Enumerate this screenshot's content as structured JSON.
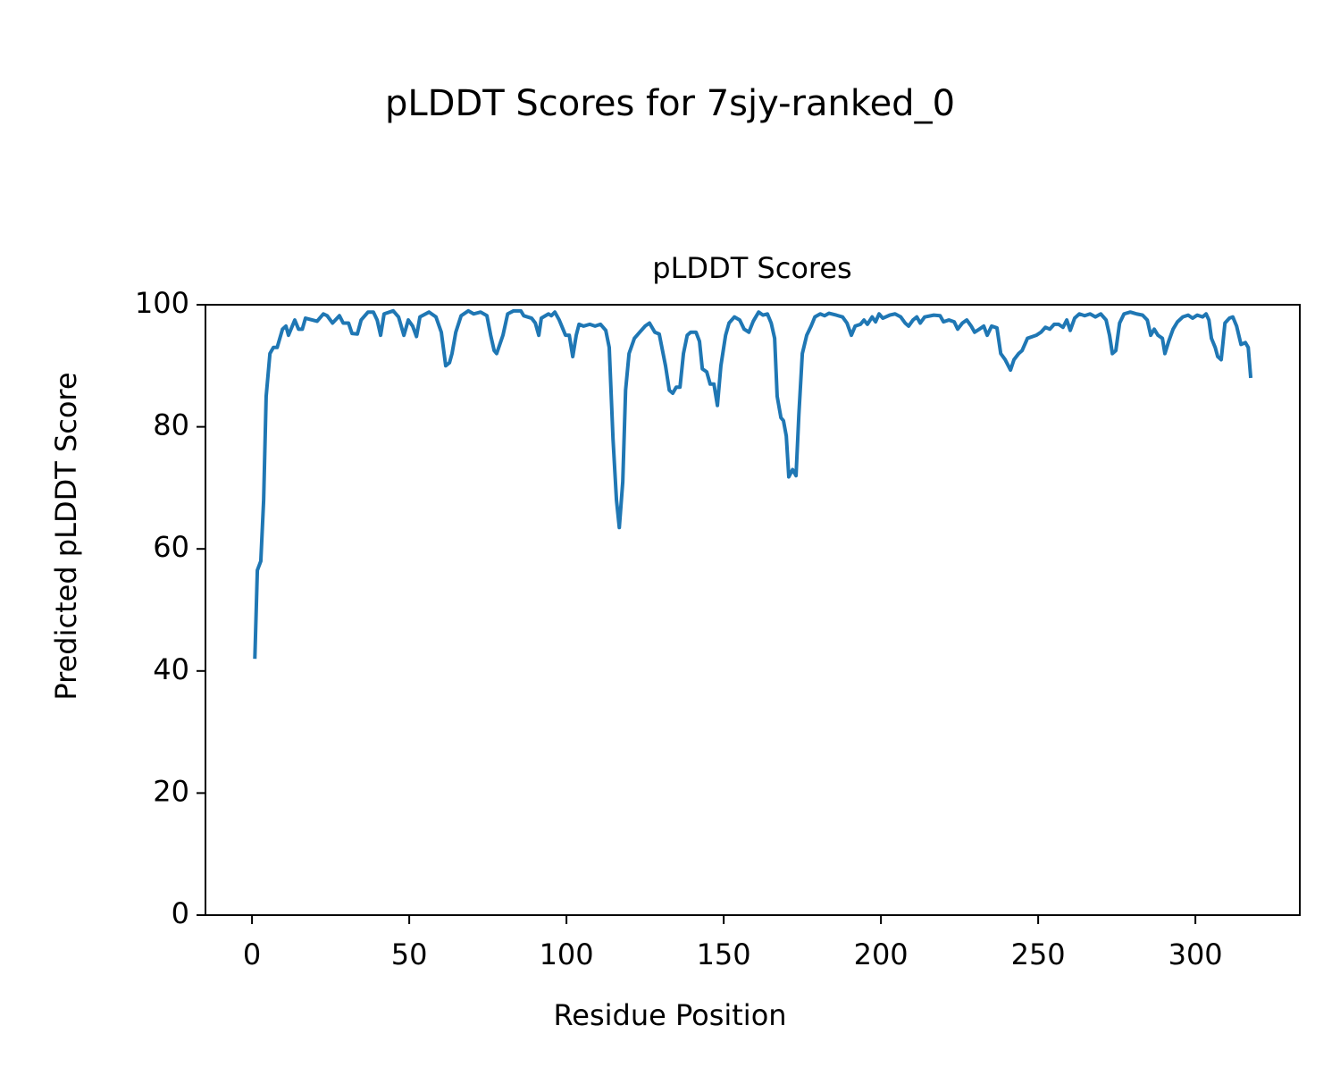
{
  "chart_data": {
    "type": "line",
    "title": "pLDDT Scores for 7sjy-ranked_0",
    "subtitle": "pLDDT Scores",
    "x_label": "Residue Position",
    "y_label": "Predicted pLDDT Score",
    "color": "#1f77b4",
    "xlim": [
      -14.8,
      333.2
    ],
    "ylim": [
      0,
      100
    ],
    "xticks": [
      0,
      50,
      100,
      150,
      200,
      250,
      300
    ],
    "yticks": [
      0,
      20,
      40,
      60,
      80,
      100
    ],
    "x": [
      0.9,
      1.7,
      2.8,
      3.7,
      4.5,
      5.7,
      6.8,
      8,
      9.7,
      10.8,
      11.6,
      13.6,
      14.8,
      16,
      17,
      20.7,
      22.7,
      23.9,
      25.6,
      27.8,
      29,
      30.7,
      31.8,
      33.5,
      34.7,
      36.9,
      38.6,
      39.8,
      40.9,
      42,
      44.9,
      46.6,
      48.3,
      49.7,
      51.1,
      52.3,
      53.4,
      56.3,
      58.5,
      60.2,
      61.6,
      62.8,
      63.6,
      64.8,
      66.5,
      68.8,
      70.5,
      72.7,
      74.7,
      75.9,
      77,
      77.8,
      79.8,
      81.3,
      83.2,
      85.5,
      86.4,
      88.9,
      90.1,
      91.2,
      92,
      94.3,
      95.2,
      96.3,
      97.7,
      98.9,
      99.7,
      100.9,
      102,
      103.1,
      104,
      105.4,
      107.4,
      109.1,
      110.8,
      112.5,
      113.6,
      114.8,
      115.9,
      116.8,
      117.9,
      118.8,
      119.9,
      121.6,
      123.3,
      125,
      126.4,
      128.1,
      129.5,
      131.5,
      132.7,
      133.8,
      134.9,
      136.1,
      137.2,
      138.4,
      139.5,
      141.2,
      142.3,
      143.2,
      144.6,
      145.7,
      146.9,
      148,
      149.1,
      150.6,
      151.7,
      153.4,
      155.1,
      156.5,
      158,
      159.4,
      161.1,
      162.5,
      163.9,
      165.1,
      166.2,
      167,
      168.2,
      169,
      169.9,
      170.7,
      171.9,
      173,
      173.9,
      175,
      176.4,
      177.8,
      179,
      180.7,
      182.1,
      183.5,
      185.8,
      187.8,
      189.2,
      190.6,
      191.8,
      193.5,
      194.6,
      195.7,
      197.2,
      198.3,
      199.4,
      200.6,
      202.8,
      204.5,
      206.3,
      207.7,
      208.8,
      210.2,
      211.4,
      212.5,
      213.9,
      216.8,
      218.8,
      219.9,
      221.6,
      223.3,
      224.4,
      225.9,
      227.3,
      228.7,
      229.8,
      231.3,
      232.7,
      233.8,
      235.2,
      236.9,
      238.1,
      239.5,
      241.2,
      242.3,
      243.8,
      244.9,
      246.6,
      248.3,
      249.4,
      250.9,
      252.3,
      253.7,
      255.1,
      256.5,
      257.9,
      259.1,
      260.2,
      261.6,
      263.1,
      264.8,
      266.5,
      268.2,
      269.9,
      271.6,
      272.7,
      273.6,
      274.7,
      275.9,
      277.3,
      279.3,
      281.3,
      283.2,
      284.7,
      285.8,
      286.9,
      288.1,
      289.5,
      290.3,
      291.5,
      292.9,
      294.3,
      296,
      297.7,
      299.1,
      300.6,
      302.3,
      303.4,
      304.3,
      305.1,
      306.3,
      307.1,
      308.2,
      309.4,
      310.8,
      311.9,
      313.1,
      314.5,
      315.9,
      316.8,
      317.6
    ],
    "values": [
      42,
      56.5,
      58,
      68,
      85,
      92,
      93,
      93,
      96,
      96.5,
      95,
      97.5,
      96,
      96,
      97.8,
      97.3,
      98.5,
      98.2,
      97,
      98.2,
      97,
      97,
      95.3,
      95.2,
      97.5,
      98.8,
      98.8,
      97.5,
      95,
      98.5,
      99,
      98,
      95,
      97.5,
      96.5,
      94.8,
      98,
      98.8,
      98,
      95.5,
      90,
      90.5,
      92,
      95.5,
      98.2,
      99,
      98.5,
      98.8,
      98.2,
      95,
      92.5,
      92,
      95,
      98.5,
      99,
      99,
      98.2,
      97.8,
      97,
      95,
      97.8,
      98.5,
      98.2,
      98.8,
      97.5,
      96,
      95,
      95,
      91.5,
      95,
      96.8,
      96.5,
      96.8,
      96.5,
      96.8,
      95.8,
      93,
      78,
      68,
      63.5,
      71,
      86,
      92,
      94.5,
      95.5,
      96.5,
      97,
      95.5,
      95.2,
      90,
      86,
      85.5,
      86.5,
      86.5,
      92,
      95,
      95.5,
      95.5,
      94,
      89.5,
      89,
      87,
      87,
      83.5,
      90,
      95,
      97,
      98,
      97.5,
      96,
      95.5,
      97.3,
      98.8,
      98.3,
      98.5,
      97,
      94.5,
      85,
      81.5,
      81,
      78.5,
      71.8,
      73,
      72,
      82,
      92,
      95,
      96.5,
      98,
      98.5,
      98.2,
      98.6,
      98.3,
      98,
      97,
      95,
      96.5,
      96.8,
      97.5,
      96.8,
      98,
      97.2,
      98.5,
      97.8,
      98.3,
      98.5,
      98,
      97,
      96.5,
      97.5,
      98,
      97,
      98,
      98.3,
      98.2,
      97.2,
      97.5,
      97.2,
      96,
      97,
      97.5,
      96.5,
      95.5,
      96,
      96.5,
      95,
      96.5,
      96.2,
      92,
      91,
      89.3,
      91,
      92,
      92.5,
      94.5,
      94.8,
      95,
      95.5,
      96.3,
      96,
      96.8,
      96.8,
      96.3,
      97.5,
      95.8,
      97.8,
      98.5,
      98.2,
      98.5,
      98,
      98.5,
      97.5,
      95,
      92,
      92.5,
      97,
      98.5,
      98.8,
      98.5,
      98.3,
      97.5,
      95,
      96,
      95,
      94.5,
      92,
      94,
      96,
      97.2,
      98,
      98.3,
      97.8,
      98.3,
      98,
      98.5,
      97.5,
      94.5,
      93,
      91.5,
      91,
      97,
      97.8,
      98,
      96.5,
      93.5,
      93.8,
      93,
      88
    ]
  }
}
